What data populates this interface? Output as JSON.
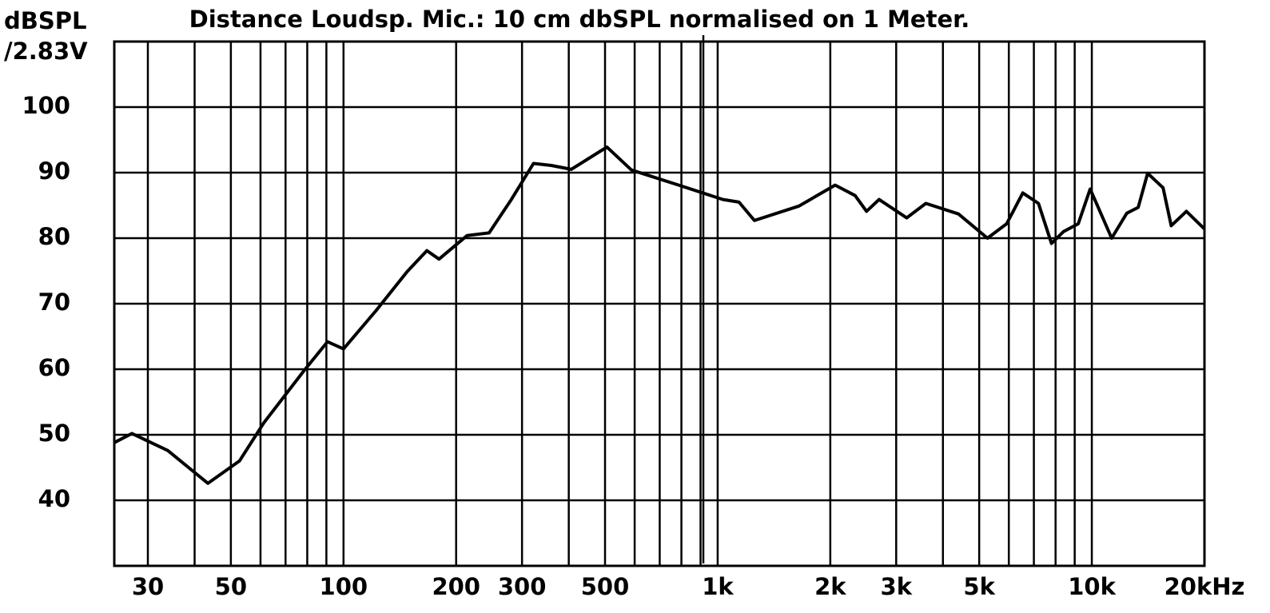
{
  "chart_data": {
    "type": "line",
    "log_x": true,
    "title": "Distance Loudsp. Mic.:  10 cm dbSPL normalised on 1 Meter.",
    "y_label": [
      "dBSPL",
      "/2.83V"
    ],
    "xlim": [
      24.4,
      20000
    ],
    "ylim": [
      30,
      110
    ],
    "xticks": [
      30,
      50,
      100,
      200,
      300,
      500,
      {
        "value": 1000,
        "label": "1k"
      },
      {
        "value": 2000,
        "label": "2k"
      },
      {
        "value": 3000,
        "label": "3k"
      },
      {
        "value": 5000,
        "label": "5k"
      },
      {
        "value": 10000,
        "label": "10k"
      },
      {
        "value": 20000,
        "label": "20kHz"
      }
    ],
    "minor_xticks": [
      40,
      60,
      70,
      80,
      90,
      400,
      600,
      700,
      800,
      900,
      4000,
      6000,
      7000,
      8000,
      9000
    ],
    "yticks": [
      40,
      50,
      60,
      70,
      80,
      90,
      100
    ],
    "grid": true,
    "color": "#000000",
    "x": [
      24.4,
      27.2,
      33.9,
      43.4,
      52.7,
      61.2,
      78.2,
      90.6,
      100,
      122,
      148,
      167,
      180,
      214,
      245,
      281,
      322,
      359,
      406,
      506,
      588,
      787,
      1033,
      1140,
      1254,
      1650,
      2060,
      2330,
      2500,
      2700,
      3200,
      3600,
      4400,
      5260,
      5920,
      6540,
      7200,
      7800,
      8400,
      9200,
      9900,
      11300,
      12400,
      13300,
      14100,
      15500,
      16300,
      17900,
      20000
    ],
    "values": [
      48.8,
      50.2,
      47.6,
      42.6,
      46,
      51.8,
      59.7,
      64.2,
      63.1,
      68.9,
      74.9,
      78.1,
      76.8,
      80.4,
      80.8,
      85.9,
      91.4,
      91.1,
      90.5,
      93.9,
      90.4,
      88.1,
      85.9,
      85.5,
      82.7,
      84.9,
      88.1,
      86.5,
      84.1,
      85.9,
      83.1,
      85.3,
      83.7,
      80,
      82.2,
      86.9,
      85.3,
      79.2,
      81,
      82.2,
      87.5,
      80,
      83.8,
      84.7,
      89.9,
      87.7,
      81.9,
      84.1,
      81.4
    ]
  }
}
